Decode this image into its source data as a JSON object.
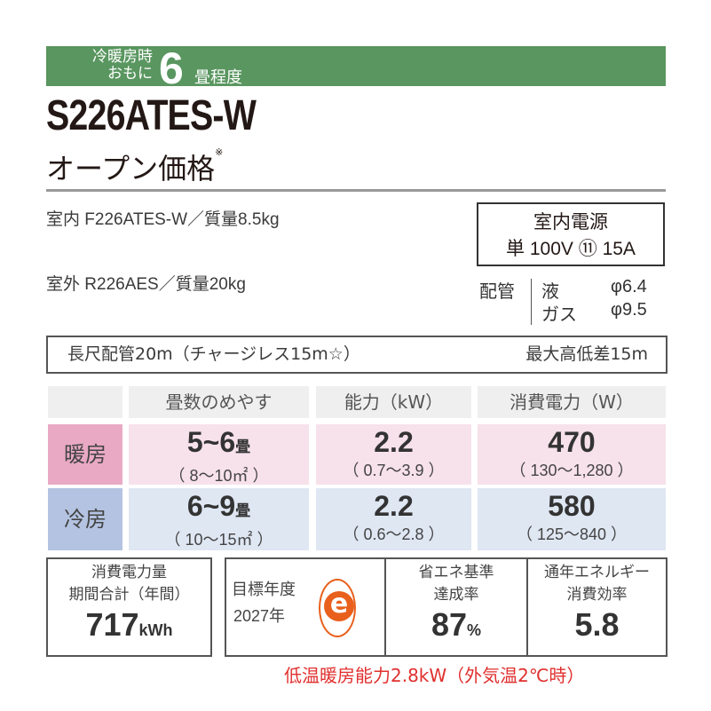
{
  "banner": {
    "line1": "冷暖房時",
    "line2": "おもに",
    "size": "6",
    "unit": "畳程度",
    "color": "#5a9660"
  },
  "model": "S226ATES-W",
  "price": {
    "label": "オープン価格",
    "mark": "※"
  },
  "indoor": "室内  F226ATES-W／質量8.5kg",
  "outdoor": "室外  R226AES／質量20kg",
  "power": {
    "title": "室内電源",
    "value": "単 100V ⑪ 15A"
  },
  "piping": {
    "label": "配管",
    "liquid": "液",
    "liquid_value": "φ6.4",
    "gas": "ガス",
    "gas_value": "φ9.5"
  },
  "long_pipe": {
    "left": "長尺配管20m（チャージレス15m☆）",
    "right": "最大高低差15m"
  },
  "table": {
    "headers": [
      "畳数のめやす",
      "能力（kW）",
      "消費電力（W）"
    ],
    "rows": [
      {
        "mode": "暖房",
        "size": "5~6",
        "size_unit": "畳",
        "size_sub": "（ 8～10㎡ ）",
        "capacity": "2.2",
        "capacity_sub": "（ 0.7～3.9 ）",
        "power": "470",
        "power_sub": "（ 130～1,280 ）",
        "color": "#e9a9c4"
      },
      {
        "mode": "冷房",
        "size": "6~9",
        "size_unit": "畳",
        "size_sub": "（ 10～15㎡ ）",
        "capacity": "2.2",
        "capacity_sub": "（ 0.6～2.8 ）",
        "power": "580",
        "power_sub": "（ 125～840 ）",
        "color": "#b4c3e1"
      }
    ]
  },
  "annual": {
    "label1": "消費電力量",
    "label2": "期間合計（年間）",
    "value": "717",
    "unit": "kWh"
  },
  "target": {
    "label1": "目標年度",
    "label2": "2027年",
    "logo": "e"
  },
  "achievement": {
    "label1": "省エネ基準",
    "label2": "達成率",
    "value": "87",
    "unit": "%"
  },
  "apf": {
    "label1": "通年エネルギー",
    "label2": "消費効率",
    "value": "5.8"
  },
  "note": "低温暖房能力2.8kW（外気温2℃時）"
}
